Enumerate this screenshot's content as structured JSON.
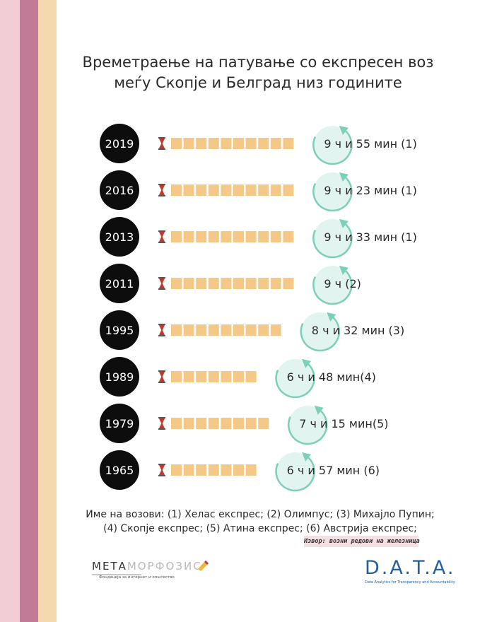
{
  "title_lines": [
    "Времетраење на патување со експресен воз",
    "меѓу Скопје и Белград низ годините"
  ],
  "chart_data": {
    "type": "bar",
    "unit": "minutes",
    "rows": [
      {
        "year": "2019",
        "label": "9 ч и 55 мин (1)",
        "minutes": 595,
        "segments": 10
      },
      {
        "year": "2016",
        "label": "9 ч и 23 мин (1)",
        "minutes": 563,
        "segments": 10
      },
      {
        "year": "2013",
        "label": "9 ч и 33 мин (1)",
        "minutes": 573,
        "segments": 10
      },
      {
        "year": "2011",
        "label": "9 ч (2)",
        "minutes": 540,
        "segments": 10
      },
      {
        "year": "1995",
        "label": "8 ч и 32 мин (3)",
        "minutes": 512,
        "segments": 9
      },
      {
        "year": "1989",
        "label": "6 ч и 48 мин(4)",
        "minutes": 408,
        "segments": 7
      },
      {
        "year": "1979",
        "label": "7 ч и 15 мин(5)",
        "minutes": 435,
        "segments": 8
      },
      {
        "year": "1965",
        "label": "6 ч и 57 мин (6)",
        "minutes": 417,
        "segments": 7
      }
    ]
  },
  "notes_lines": [
    "Име на возови: (1) Хелас експрес; (2) Олимпус; (3) Михајло Пупин;",
    "(4) Скопје експрес; (5) Атина експрес; (6) Австрија експрес;"
  ],
  "source": "Извор: возни редови на железница",
  "logos": {
    "meta_part1": "МЕТА",
    "meta_part2": "МОРФОЗИС",
    "meta_tagline": "Фондација за интернет и општество",
    "data_name": "D.A.T.A.",
    "data_tagline": "Data Analytics for Transparency and Accountability"
  },
  "colors": {
    "stripe_pink": "#f3cdd6",
    "stripe_mauve": "#c07b97",
    "stripe_peach": "#f3d9ad",
    "bar_fill": "#f4c887",
    "year_circle": "#0d0d0d",
    "timer_fill": "#e2f4ef",
    "timer_arrow": "#7ccfb9",
    "hourglass": "#c0392b",
    "data_blue": "#24609e"
  }
}
